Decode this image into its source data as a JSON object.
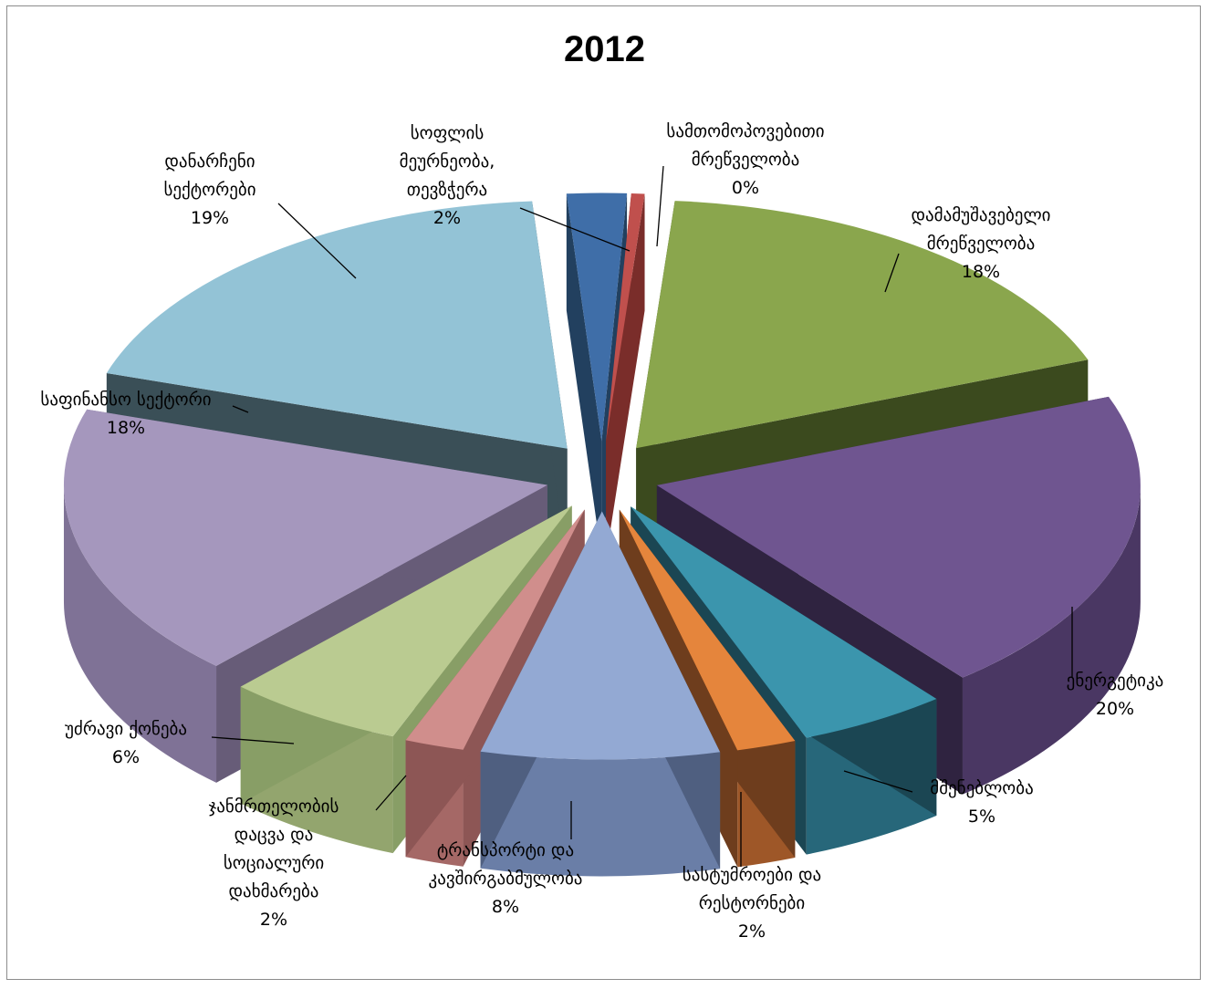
{
  "chart_data": {
    "type": "pie",
    "title": "2012",
    "slices": [
      {
        "label": [
          "სამთომოპოვებითი",
          "მრეწველობა"
        ],
        "value": 0,
        "pct": "0%",
        "colors": [
          "#c0504d",
          "#8c3532",
          "#7a2d2a"
        ]
      },
      {
        "label": [
          "დამამუშავებელი",
          "მრეწველობა"
        ],
        "value": 18,
        "pct": "18%",
        "colors": [
          "#8aa64d",
          "#55672c",
          "#3b4a1e"
        ]
      },
      {
        "label": [
          "ენერგეტიკა"
        ],
        "value": 20,
        "pct": "20%",
        "colors": [
          "#6f5590",
          "#4a3763",
          "#2f2340"
        ]
      },
      {
        "label": [
          "მშენებლობა"
        ],
        "value": 5,
        "pct": "5%",
        "colors": [
          "#3b95ad",
          "#27677a",
          "#1b4653"
        ]
      },
      {
        "label": [
          "სასტუმროები და",
          "რესტორნები"
        ],
        "value": 2,
        "pct": "2%",
        "colors": [
          "#e5853c",
          "#9e5728",
          "#6e3d1d"
        ]
      },
      {
        "label": [
          "ტრანსპორტი და",
          "კავშირგაბმულობა"
        ],
        "value": 8,
        "pct": "8%",
        "colors": [
          "#93a9d3",
          "#6a7ea7",
          "#4f5f80"
        ]
      },
      {
        "label": [
          "ჯანმრთელობის",
          "დაცვა და",
          "სოციალური",
          "დახმარება"
        ],
        "value": 2,
        "pct": "2%",
        "colors": [
          "#d08e8c",
          "#a56866",
          "#8d5655"
        ]
      },
      {
        "label": [
          "უძრავი ქონება"
        ],
        "value": 6,
        "pct": "6%",
        "colors": [
          "#bacb91",
          "#93a56e",
          "#889e66"
        ]
      },
      {
        "label": [
          "საფინანსო სექტორი"
        ],
        "value": 18,
        "pct": "18%",
        "colors": [
          "#a597bd",
          "#7f7296",
          "#675c78"
        ]
      },
      {
        "label": [
          "დანარჩენი",
          "სექტორები"
        ],
        "value": 19,
        "pct": "19%",
        "colors": [
          "#93c3d6",
          "#4f6d78",
          "#3a4f57"
        ]
      },
      {
        "label": [
          "სოფლის",
          "მეურნეობა,",
          "თევზჭერა"
        ],
        "value": 2,
        "pct": "2%",
        "colors": [
          "#3f6ea8",
          "#2c4f7b",
          "#22405f"
        ]
      }
    ],
    "legend": "none",
    "style": "3d-exploded"
  }
}
